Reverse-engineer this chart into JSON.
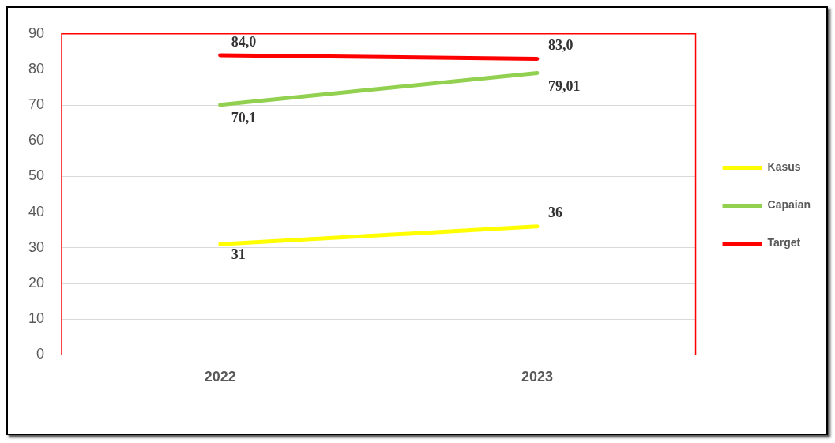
{
  "chart_data": {
    "type": "line",
    "categories": [
      "2022",
      "2023"
    ],
    "series": [
      {
        "name": "Kasus",
        "color": "#ffff00",
        "values": [
          31,
          36
        ],
        "value_labels": [
          "31",
          "36"
        ]
      },
      {
        "name": "Capaian",
        "color": "#92d050",
        "values": [
          70.1,
          79.01
        ],
        "value_labels": [
          "70,1",
          "79,01"
        ]
      },
      {
        "name": "Target",
        "color": "#ff0000",
        "values": [
          84,
          83
        ],
        "value_labels": [
          "84,0",
          "83,0"
        ]
      }
    ],
    "ylim": [
      0,
      90
    ],
    "yticks": [
      0,
      10,
      20,
      30,
      40,
      50,
      60,
      70,
      80,
      90
    ],
    "grid": "y",
    "legend": "right",
    "marker": "none",
    "line_style": "solid"
  }
}
